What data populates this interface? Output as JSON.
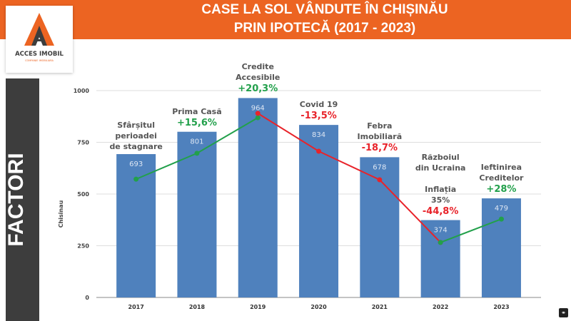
{
  "header": {
    "title_line1": "CASE LA SOL VÂNDUTE ÎN CHIȘINĂU",
    "title_line2": "PRIN IPOTECĂ (2017 - 2023)"
  },
  "logo": {
    "name": "ACCES IMOBIL",
    "subtitle": "COMPANIE IMOBILIARA"
  },
  "sidebar": {
    "label": "FACTORI"
  },
  "colors": {
    "bar": "#4f81bd",
    "up": "#22a04b",
    "down": "#e8232a",
    "header": "#ec6422",
    "sidebar": "#3d3d3d"
  },
  "chart_data": {
    "type": "bar",
    "ylabel": "Chisinau",
    "ylim": [
      0,
      1000
    ],
    "yticks": [
      "0",
      "250",
      "500",
      "750",
      "1000"
    ],
    "categories": [
      "2017",
      "2018",
      "2019",
      "2020",
      "2021",
      "2022",
      "2023"
    ],
    "values": [
      693,
      801,
      964,
      834,
      678,
      374,
      479
    ],
    "grid": true,
    "trend_lines": [
      {
        "color": "green",
        "points": [
          [
            0,
            572
          ],
          [
            1,
            697
          ],
          [
            2,
            869
          ]
        ]
      },
      {
        "color": "red",
        "points": [
          [
            2,
            890
          ],
          [
            3,
            707
          ],
          [
            4,
            569
          ],
          [
            5,
            266
          ]
        ]
      },
      {
        "color": "green",
        "points": [
          [
            5,
            266
          ],
          [
            6,
            379
          ]
        ]
      }
    ],
    "annotations": [
      {
        "label": "Sfârșitul\nperioadei\nde stagnare",
        "change": ""
      },
      {
        "label": "Prima Casă",
        "change": "+15,6%"
      },
      {
        "label": "Credite\nAccesibile",
        "change": "+20,3%"
      },
      {
        "label": "Covid 19",
        "change": "-13,5%"
      },
      {
        "label": "Febra\nImobiliară",
        "change": "-18,7%"
      },
      {
        "label": "Războiul\ndin Ucraina\n\nInflația\n35%",
        "change": "-44,8%"
      },
      {
        "label": "Ieftinirea\nCreditelor",
        "change": "+28%"
      }
    ]
  }
}
